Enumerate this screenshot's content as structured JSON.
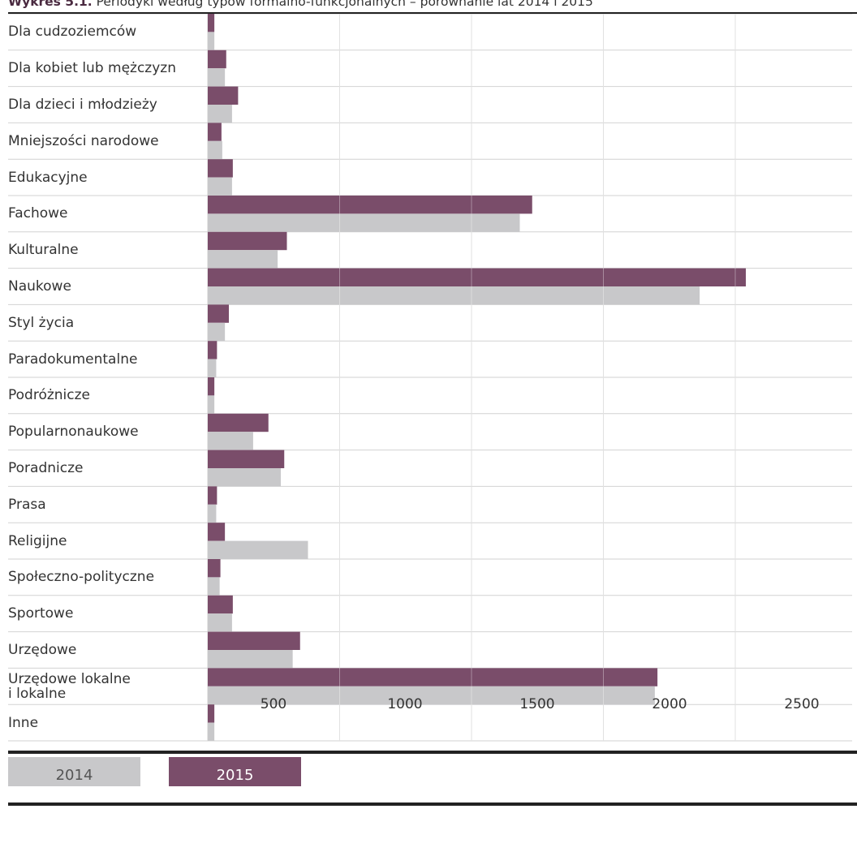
{
  "caption": {
    "prefix": "Wykres 5.1.",
    "text": " Periodyki według typów formalno-funkcjonalnych – porównanie lat 2014 i 2015"
  },
  "colors": {
    "s2014": "#c8c8ca",
    "s2015": "#7a4d6a",
    "grid": "#d2d2d2",
    "axis": "#222222"
  },
  "chart_data": {
    "type": "bar",
    "orientation": "horizontal",
    "title": "Periodyki według typów formalno-funkcjonalnych – porównanie lat 2014 i 2015",
    "categories": [
      "Dla cudzoziemców",
      "Dla kobiet lub mężczyzn",
      "Dla dzieci i młodzieży",
      "Mniejszości narodowe",
      "Edukacyjne",
      "Fachowe",
      "Kulturalne",
      "Naukowe",
      "Styl życia",
      "Paradokumentalne",
      "Podróżnicze",
      "Popularnonaukowe",
      "Poradnicze",
      "Prasa",
      "Religijne",
      "Społeczno-polityczne",
      "Sportowe",
      "Urzędowe",
      "Urzędowe lokalne\ni lokalne",
      "Inne"
    ],
    "series": [
      {
        "name": "2015",
        "values": [
          25,
          70,
          115,
          52,
          95,
          1230,
          300,
          2040,
          80,
          35,
          25,
          230,
          290,
          35,
          65,
          48,
          95,
          350,
          1705,
          25
        ]
      },
      {
        "name": "2014",
        "values": [
          25,
          65,
          92,
          55,
          92,
          1183,
          265,
          1865,
          65,
          32,
          25,
          172,
          277,
          32,
          380,
          45,
          92,
          322,
          1695,
          25
        ]
      }
    ],
    "xticks": [
      500,
      1000,
      1500,
      2000,
      2500
    ],
    "xlim": [
      0,
      2500
    ],
    "grid": true,
    "legend_position": "bottom-left"
  },
  "legend": {
    "items": [
      "2014",
      "2015"
    ]
  }
}
